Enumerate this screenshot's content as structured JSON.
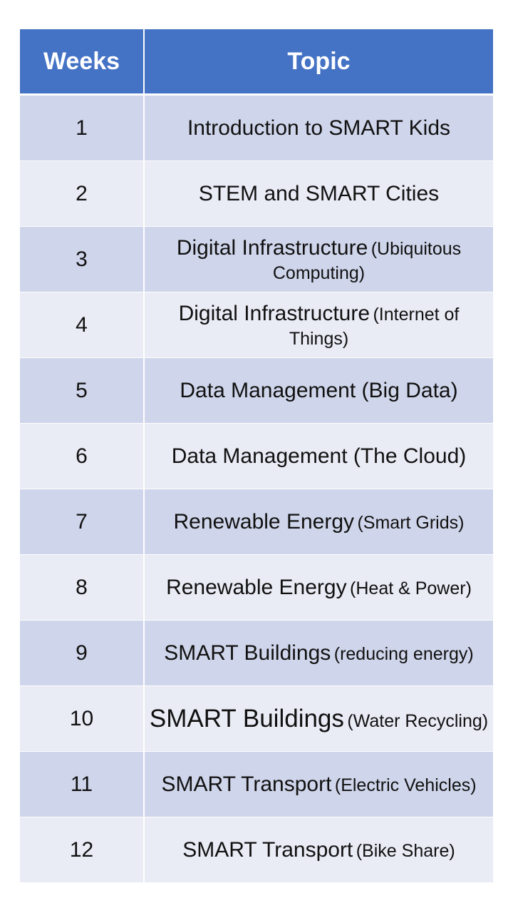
{
  "table": {
    "headers": {
      "weeks": "Weeks",
      "topic": "Topic"
    },
    "header_color": "#4472c4",
    "row_colors": [
      "#cfd5ea",
      "#e9ebf5"
    ],
    "rows": [
      {
        "week": "1",
        "topic": "Introduction to SMART Kids",
        "detail": ""
      },
      {
        "week": "2",
        "topic": "STEM and SMART Cities",
        "detail": ""
      },
      {
        "week": "3",
        "topic": "Digital Infrastructure",
        "detail": "(Ubiquitous Computing)"
      },
      {
        "week": "4",
        "topic": "Digital Infrastructure",
        "detail": "(Internet of Things)"
      },
      {
        "week": "5",
        "topic": "Data Management (Big Data)",
        "detail": ""
      },
      {
        "week": "6",
        "topic": "Data Management (The Cloud)",
        "detail": ""
      },
      {
        "week": "7",
        "topic": "Renewable Energy",
        "detail": "(Smart Grids)"
      },
      {
        "week": "8",
        "topic": "Renewable Energy",
        "detail": "(Heat & Power)"
      },
      {
        "week": "9",
        "topic": "SMART Buildings",
        "detail": "(reducing energy)"
      },
      {
        "week": "10",
        "topic": "SMART Buildings",
        "detail": "(Water Recycling)"
      },
      {
        "week": "11",
        "topic": "SMART Transport",
        "detail": "(Electric Vehicles)"
      },
      {
        "week": "12",
        "topic": "SMART Transport",
        "detail": "(Bike Share)"
      }
    ]
  }
}
